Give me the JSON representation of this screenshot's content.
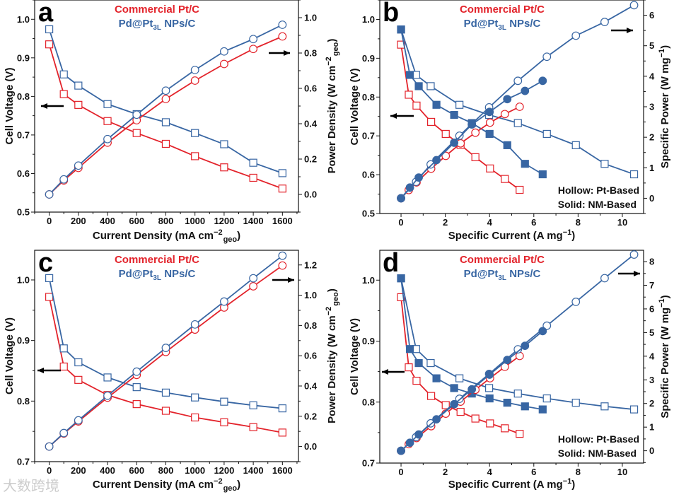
{
  "colors": {
    "pt": "#e3232b",
    "pd": "#3866a3",
    "axis": "#111111",
    "arrow": "#000000"
  },
  "legend": {
    "pt": "Commercial Pt/C",
    "pd_main": "Pd@Pt",
    "pd_sub": "3L",
    "pd_rest": " NPs/C"
  },
  "notes": {
    "hollow": "Hollow: Pt-Based",
    "solid": "Solid: NM-Based"
  },
  "watermark": "大数跨境",
  "chart_data": [
    {
      "panel": "a",
      "type": "line",
      "xlabel": {
        "main": "Current Density (mA cm",
        "sup": "−2",
        "sub": "geo",
        "end": ")"
      },
      "ylabel_left": "Cell Voltage (V)",
      "ylabel_right": {
        "main": "Power Density (W cm",
        "sup": "−2",
        "sub": "geo",
        "end": ")"
      },
      "xlim": [
        -100,
        1710
      ],
      "ylim_left": [
        0.5,
        1.05
      ],
      "ylim_right": [
        -0.1,
        1.1
      ],
      "xticks": [
        "0",
        "200",
        "400",
        "600",
        "800",
        "1000",
        "1200",
        "1400",
        "1600"
      ],
      "xticks_v": [
        0,
        200,
        400,
        600,
        800,
        1000,
        1200,
        1400,
        1600
      ],
      "xminor": 100,
      "lticks": [
        "0.5",
        "0.6",
        "0.7",
        "0.8",
        "0.9",
        "1.0"
      ],
      "lticks_v": [
        0.5,
        0.6,
        0.7,
        0.8,
        0.9,
        1.0
      ],
      "lminor": 0.05,
      "rticks": [
        "0.0",
        "0.2",
        "0.4",
        "0.6",
        "0.8",
        "1.0"
      ],
      "rticks_v": [
        0,
        0.2,
        0.4,
        0.6,
        0.8,
        1.0
      ],
      "rminor": 0.1,
      "show_notes": false,
      "series": [
        {
          "name": "Commercial Pt/C voltage",
          "color": "pt",
          "marker": "square",
          "fill": "hollow",
          "axis": "left",
          "x": [
            0,
            100,
            200,
            400,
            600,
            800,
            1000,
            1200,
            1400,
            1600
          ],
          "y": [
            0.935,
            0.806,
            0.778,
            0.736,
            0.705,
            0.677,
            0.645,
            0.616,
            0.589,
            0.561
          ]
        },
        {
          "name": "Pd@Pt3L voltage",
          "color": "pd",
          "marker": "square",
          "fill": "hollow",
          "axis": "left",
          "x": [
            0,
            100,
            200,
            400,
            600,
            800,
            1000,
            1200,
            1400,
            1600
          ],
          "y": [
            0.974,
            0.857,
            0.828,
            0.78,
            0.754,
            0.733,
            0.705,
            0.676,
            0.628,
            0.601
          ]
        },
        {
          "name": "Commercial Pt/C power",
          "color": "pt",
          "marker": "circle",
          "fill": "hollow",
          "axis": "right",
          "x": [
            0,
            100,
            200,
            400,
            600,
            800,
            1000,
            1200,
            1400,
            1600
          ],
          "y": [
            0,
            0.079,
            0.15,
            0.293,
            0.42,
            0.54,
            0.644,
            0.738,
            0.823,
            0.894
          ]
        },
        {
          "name": "Pd@Pt3L power",
          "color": "pd",
          "marker": "circle",
          "fill": "hollow",
          "axis": "right",
          "x": [
            0,
            100,
            200,
            400,
            600,
            800,
            1000,
            1200,
            1400,
            1600
          ],
          "y": [
            0,
            0.085,
            0.163,
            0.313,
            0.451,
            0.587,
            0.704,
            0.809,
            0.879,
            0.96
          ]
        }
      ]
    },
    {
      "panel": "b",
      "type": "line",
      "xlabel": {
        "main": "Specific Current (A mg",
        "sup": "−1",
        "sub": "",
        "end": ")"
      },
      "ylabel_left": "Cell Voltage (V)",
      "ylabel_right": {
        "main": "Specific Power (W mg",
        "sup": "−1",
        "sub": "",
        "end": ")"
      },
      "xlim": [
        -0.96,
        10.96
      ],
      "ylim_left": [
        0.5,
        1.05
      ],
      "ylim_right": [
        -0.5,
        6.5
      ],
      "xticks": [
        "0",
        "2",
        "4",
        "6",
        "8",
        "10"
      ],
      "xticks_v": [
        0,
        2,
        4,
        6,
        8,
        10
      ],
      "xminor": 1,
      "lticks": [
        "0.5",
        "0.6",
        "0.7",
        "0.8",
        "0.9",
        "1.0"
      ],
      "lticks_v": [
        0.5,
        0.6,
        0.7,
        0.8,
        0.9,
        1.0
      ],
      "lminor": 0.05,
      "rticks": [
        "0",
        "1",
        "2",
        "3",
        "4",
        "5",
        "6"
      ],
      "rticks_v": [
        0,
        1,
        2,
        3,
        4,
        5,
        6
      ],
      "rminor": 0.5,
      "show_notes": true,
      "series": [
        {
          "name": "Commercial Pt/C voltage (Pt-based)",
          "color": "pt",
          "marker": "square",
          "fill": "hollow",
          "axis": "left",
          "x": [
            0,
            0.35,
            0.7,
            1.36,
            2.02,
            2.69,
            3.36,
            4.02,
            4.69,
            5.36
          ],
          "y": [
            0.935,
            0.806,
            0.778,
            0.736,
            0.705,
            0.677,
            0.645,
            0.616,
            0.589,
            0.561
          ]
        },
        {
          "name": "Pd@Pt3L voltage (Pt-based)",
          "color": "pd",
          "marker": "square",
          "fill": "hollow",
          "axis": "left",
          "x": [
            0,
            0.68,
            1.34,
            2.64,
            3.98,
            5.28,
            6.59,
            7.9,
            9.2,
            10.53
          ],
          "y": [
            0.974,
            0.857,
            0.828,
            0.78,
            0.754,
            0.733,
            0.705,
            0.676,
            0.628,
            0.601
          ]
        },
        {
          "name": "Pd@Pt3L voltage (NM-based)",
          "color": "pd",
          "marker": "square",
          "fill": "solid",
          "axis": "left",
          "x": [
            0,
            0.4,
            0.8,
            1.6,
            2.4,
            3.2,
            4.0,
            4.8,
            5.6,
            6.4
          ],
          "y": [
            0.974,
            0.857,
            0.828,
            0.78,
            0.754,
            0.733,
            0.705,
            0.676,
            0.628,
            0.601
          ]
        },
        {
          "name": "Commercial Pt/C power (Pt-based)",
          "color": "pt",
          "marker": "circle",
          "fill": "hollow",
          "axis": "right",
          "x": [
            0,
            0.35,
            0.7,
            1.36,
            2.02,
            2.69,
            3.36,
            4.02,
            4.69,
            5.36
          ],
          "y": [
            0,
            0.27,
            0.52,
            0.97,
            1.39,
            1.8,
            2.15,
            2.48,
            2.76,
            3.0
          ]
        },
        {
          "name": "Pd@Pt3L power (Pt-based)",
          "color": "pd",
          "marker": "circle",
          "fill": "hollow",
          "axis": "right",
          "x": [
            0,
            0.68,
            1.34,
            2.64,
            3.98,
            5.28,
            6.59,
            7.9,
            9.2,
            10.53
          ],
          "y": [
            0,
            0.54,
            1.11,
            2.05,
            2.98,
            3.85,
            4.64,
            5.33,
            5.78,
            6.33
          ]
        },
        {
          "name": "Pd@Pt3L power (NM-based)",
          "color": "pd",
          "marker": "circle",
          "fill": "solid",
          "axis": "right",
          "x": [
            0,
            0.4,
            0.8,
            1.6,
            2.4,
            3.2,
            4.0,
            4.8,
            5.6,
            6.4
          ],
          "y": [
            0,
            0.35,
            0.68,
            1.25,
            1.82,
            2.42,
            2.83,
            3.25,
            3.52,
            3.85
          ]
        }
      ]
    },
    {
      "panel": "c",
      "type": "line",
      "xlabel": {
        "main": "Current Density (mA cm",
        "sup": "−2",
        "sub": "geo",
        "end": ")"
      },
      "ylabel_left": "Cell Voltage (V)",
      "ylabel_right": {
        "main": "Power Density (W cm",
        "sup": "−2",
        "sub": "geo",
        "end": ")"
      },
      "xlim": [
        -100,
        1710
      ],
      "ylim_left": [
        0.7,
        1.049
      ],
      "ylim_right": [
        -0.1,
        1.297
      ],
      "xticks": [
        "0",
        "200",
        "400",
        "600",
        "800",
        "1000",
        "1200",
        "1400",
        "1600"
      ],
      "xticks_v": [
        0,
        200,
        400,
        600,
        800,
        1000,
        1200,
        1400,
        1600
      ],
      "xminor": 100,
      "lticks": [
        "0.7",
        "0.8",
        "0.9",
        "1.0"
      ],
      "lticks_v": [
        0.7,
        0.8,
        0.9,
        1.0
      ],
      "lminor": 0.05,
      "rticks": [
        "0.0",
        "0.2",
        "0.4",
        "0.6",
        "0.8",
        "1.0",
        "1.2"
      ],
      "rticks_v": [
        0,
        0.2,
        0.4,
        0.6,
        0.8,
        1.0,
        1.2
      ],
      "rminor": 0.1,
      "show_notes": false,
      "series": [
        {
          "name": "Commercial Pt/C voltage",
          "color": "pt",
          "marker": "square",
          "fill": "hollow",
          "axis": "left",
          "x": [
            0,
            100,
            200,
            400,
            600,
            800,
            1000,
            1200,
            1400,
            1600
          ],
          "y": [
            0.972,
            0.857,
            0.835,
            0.81,
            0.795,
            0.784,
            0.773,
            0.765,
            0.757,
            0.748
          ]
        },
        {
          "name": "Pd@Pt3L voltage",
          "color": "pd",
          "marker": "square",
          "fill": "hollow",
          "axis": "left",
          "x": [
            0,
            100,
            200,
            400,
            600,
            800,
            1000,
            1200,
            1400,
            1600
          ],
          "y": [
            1.003,
            0.887,
            0.864,
            0.839,
            0.823,
            0.814,
            0.806,
            0.799,
            0.793,
            0.788
          ]
        },
        {
          "name": "Commercial Pt/C power",
          "color": "pt",
          "marker": "circle",
          "fill": "hollow",
          "axis": "right",
          "x": [
            0,
            100,
            200,
            400,
            600,
            800,
            1000,
            1200,
            1400,
            1600
          ],
          "y": [
            0,
            0.086,
            0.166,
            0.323,
            0.473,
            0.625,
            0.773,
            0.919,
            1.059,
            1.196
          ]
        },
        {
          "name": "Pd@Pt3L power",
          "color": "pd",
          "marker": "circle",
          "fill": "hollow",
          "axis": "right",
          "x": [
            0,
            100,
            200,
            400,
            600,
            800,
            1000,
            1200,
            1400,
            1600
          ],
          "y": [
            0,
            0.089,
            0.173,
            0.336,
            0.495,
            0.652,
            0.807,
            0.958,
            1.112,
            1.261
          ]
        }
      ]
    },
    {
      "panel": "d",
      "type": "line",
      "xlabel": {
        "main": "Specific Current (A mg",
        "sup": "−1",
        "sub": "",
        "end": ")"
      },
      "ylabel_left": "Cell Voltage (V)",
      "ylabel_right": {
        "main": "Specific Power (W mg",
        "sup": "−1",
        "sub": "",
        "end": ")"
      },
      "xlim": [
        -0.96,
        10.96
      ],
      "ylim_left": [
        0.7,
        1.049
      ],
      "ylim_right": [
        -0.52,
        8.48
      ],
      "xticks": [
        "0",
        "2",
        "4",
        "6",
        "8",
        "10"
      ],
      "xticks_v": [
        0,
        2,
        4,
        6,
        8,
        10
      ],
      "xminor": 1,
      "lticks": [
        "0.7",
        "0.8",
        "0.9",
        "1.0"
      ],
      "lticks_v": [
        0.7,
        0.8,
        0.9,
        1.0
      ],
      "lminor": 0.05,
      "rticks": [
        "0",
        "1",
        "2",
        "3",
        "4",
        "5",
        "6",
        "7",
        "8"
      ],
      "rticks_v": [
        0,
        1,
        2,
        3,
        4,
        5,
        6,
        7,
        8
      ],
      "rminor": 0.5,
      "show_notes": true,
      "series": [
        {
          "name": "Commercial Pt/C voltage (Pt-based)",
          "color": "pt",
          "marker": "square",
          "fill": "hollow",
          "axis": "left",
          "x": [
            0,
            0.35,
            0.7,
            1.36,
            2.02,
            2.69,
            3.36,
            4.02,
            4.69,
            5.36
          ],
          "y": [
            0.972,
            0.857,
            0.835,
            0.81,
            0.795,
            0.784,
            0.773,
            0.765,
            0.757,
            0.748
          ]
        },
        {
          "name": "Pd@Pt3L voltage (Pt-based)",
          "color": "pd",
          "marker": "square",
          "fill": "hollow",
          "axis": "left",
          "x": [
            0,
            0.68,
            1.34,
            2.64,
            3.98,
            5.28,
            6.59,
            7.9,
            9.2,
            10.53
          ],
          "y": [
            1.003,
            0.887,
            0.864,
            0.839,
            0.823,
            0.814,
            0.806,
            0.799,
            0.793,
            0.788
          ]
        },
        {
          "name": "Pd@Pt3L voltage (NM-based)",
          "color": "pd",
          "marker": "square",
          "fill": "solid",
          "axis": "left",
          "x": [
            0,
            0.4,
            0.8,
            1.6,
            2.4,
            3.2,
            4.0,
            4.8,
            5.6,
            6.4
          ],
          "y": [
            1.003,
            0.887,
            0.864,
            0.839,
            0.823,
            0.814,
            0.806,
            0.799,
            0.793,
            0.788
          ]
        },
        {
          "name": "Commercial Pt/C power (Pt-based)",
          "color": "pt",
          "marker": "circle",
          "fill": "hollow",
          "axis": "right",
          "x": [
            0,
            0.35,
            0.7,
            1.36,
            2.02,
            2.69,
            3.36,
            4.02,
            4.69,
            5.36
          ],
          "y": [
            0,
            0.28,
            0.54,
            1.04,
            1.57,
            2.08,
            2.58,
            3.07,
            3.55,
            4.01
          ]
        },
        {
          "name": "Pd@Pt3L power (Pt-based)",
          "color": "pd",
          "marker": "circle",
          "fill": "hollow",
          "axis": "right",
          "x": [
            0,
            0.68,
            1.34,
            2.64,
            3.98,
            5.28,
            6.59,
            7.9,
            9.2,
            10.53
          ],
          "y": [
            0,
            0.58,
            1.16,
            2.2,
            3.25,
            4.29,
            5.29,
            6.3,
            7.3,
            8.3
          ]
        },
        {
          "name": "Pd@Pt3L power (NM-based)",
          "color": "pd",
          "marker": "circle",
          "fill": "solid",
          "axis": "right",
          "x": [
            0,
            0.4,
            0.8,
            1.6,
            2.4,
            3.2,
            4.0,
            4.8,
            5.6,
            6.4
          ],
          "y": [
            0,
            0.34,
            0.69,
            1.33,
            1.97,
            2.6,
            3.22,
            3.84,
            4.44,
            5.06
          ]
        }
      ]
    }
  ]
}
